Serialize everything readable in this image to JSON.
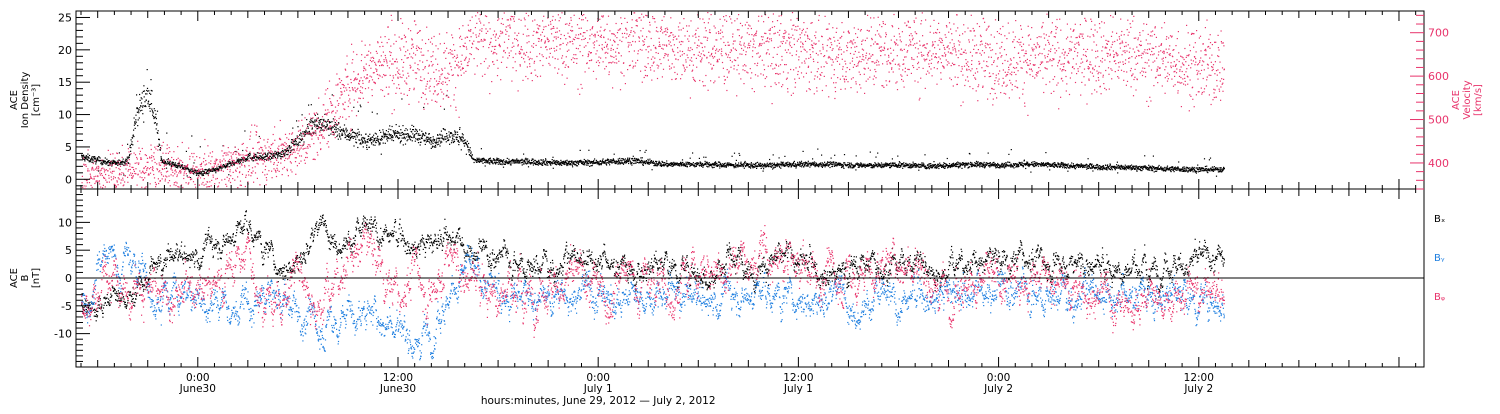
{
  "chart_data": [
    {
      "type": "scatter",
      "panel": "ion-density-velocity",
      "left_axis": {
        "label_lines": [
          "ACE",
          "Ion Density",
          "[cm⁻³]"
        ],
        "ticks": [
          0,
          5,
          10,
          15,
          20,
          25
        ],
        "ylim": [
          -1.5,
          26
        ],
        "color": "#000000"
      },
      "right_axis": {
        "label_lines": [
          "ACE",
          "Velocity",
          "[km/s]"
        ],
        "ticks": [
          400,
          500,
          600,
          700
        ],
        "ylim": [
          340,
          750
        ],
        "color": "#e8336b"
      },
      "series": [
        {
          "axis": "left",
          "color": "#000000",
          "anchors": [
            [
              -7,
              3.5
            ],
            [
              -5,
              2.5
            ],
            [
              -4.2,
              3
            ],
            [
              -3.6,
              11
            ],
            [
              -3,
              13
            ],
            [
              -2.6,
              10
            ],
            [
              -2.2,
              3
            ],
            [
              -1,
              2
            ],
            [
              0,
              1
            ],
            [
              1,
              1.5
            ],
            [
              2,
              2.5
            ],
            [
              3,
              3.5
            ],
            [
              4,
              3.5
            ],
            [
              5,
              4
            ],
            [
              6,
              6
            ],
            [
              7,
              9
            ],
            [
              8,
              8
            ],
            [
              9,
              7
            ],
            [
              10,
              6
            ],
            [
              11,
              6.5
            ],
            [
              12,
              7
            ],
            [
              13,
              7
            ],
            [
              14,
              6
            ],
            [
              15,
              7
            ],
            [
              16,
              6
            ],
            [
              16.5,
              3
            ],
            [
              18,
              2.8
            ],
            [
              20,
              2.8
            ],
            [
              22,
              2.6
            ],
            [
              24,
              2.7
            ],
            [
              26,
              3
            ],
            [
              28,
              2.4
            ],
            [
              30,
              2.4
            ],
            [
              32,
              2.3
            ],
            [
              34,
              2.2
            ],
            [
              36,
              2.4
            ],
            [
              38,
              2.4
            ],
            [
              40,
              2.2
            ],
            [
              42,
              2.3
            ],
            [
              44,
              2.1
            ],
            [
              46,
              2.4
            ],
            [
              48,
              2.3
            ],
            [
              50,
              2.4
            ],
            [
              52,
              2.2
            ],
            [
              54,
              2.0
            ],
            [
              56,
              1.9
            ],
            [
              58,
              1.7
            ],
            [
              60,
              1.6
            ],
            [
              61,
              1.6
            ]
          ],
          "noise": 0.35,
          "spike_rate": 0.04,
          "spike_amp": 6
        },
        {
          "axis": "right",
          "color": "#e8336b",
          "anchors": [
            [
              -7,
              365
            ],
            [
              -5,
              375
            ],
            [
              -3.5,
              388
            ],
            [
              -2.5,
              395
            ],
            [
              -1.5,
              380
            ],
            [
              0,
              375
            ],
            [
              1,
              385
            ],
            [
              2,
              395
            ],
            [
              3,
              408
            ],
            [
              4,
              415
            ],
            [
              5,
              425
            ],
            [
              6,
              440
            ],
            [
              7,
              470
            ],
            [
              8,
              520
            ],
            [
              9,
              575
            ],
            [
              10,
              615
            ],
            [
              11,
              630
            ],
            [
              12,
              630
            ],
            [
              13,
              640
            ],
            [
              14,
              620
            ],
            [
              15,
              615
            ],
            [
              15.8,
              640
            ],
            [
              16.5,
              690
            ],
            [
              18,
              685
            ],
            [
              20,
              690
            ],
            [
              22,
              680
            ],
            [
              24,
              678
            ],
            [
              26,
              690
            ],
            [
              28,
              670
            ],
            [
              30,
              665
            ],
            [
              32,
              665
            ],
            [
              34,
              670
            ],
            [
              36,
              660
            ],
            [
              38,
              650
            ],
            [
              40,
              655
            ],
            [
              42,
              665
            ],
            [
              44,
              668
            ],
            [
              46,
              650
            ],
            [
              48,
              640
            ],
            [
              50,
              640
            ],
            [
              52,
              645
            ],
            [
              54,
              655
            ],
            [
              56,
              650
            ],
            [
              58,
              640
            ],
            [
              60,
              622
            ],
            [
              61,
              625
            ]
          ],
          "noise": 0.07,
          "spike_rate": 0.01,
          "spike_amp": 60
        }
      ]
    },
    {
      "type": "scatter",
      "panel": "magnetic-field",
      "left_axis": {
        "label_lines": [
          "ACE",
          "B",
          "[nT]"
        ],
        "ticks": [
          -10,
          -5,
          0,
          5,
          10
        ],
        "ylim": [
          -16,
          16
        ],
        "color": "#000000"
      },
      "zero_line": true,
      "series": [
        {
          "name": "Bₓ",
          "color": "#000000",
          "anchors": [
            [
              -7,
              -4.5
            ],
            [
              -5,
              -4
            ],
            [
              -4,
              -3
            ],
            [
              -3,
              0
            ],
            [
              -2,
              3
            ],
            [
              -1,
              4
            ],
            [
              0,
              4.5
            ],
            [
              1,
              6
            ],
            [
              2,
              8
            ],
            [
              3,
              10
            ],
            [
              4,
              6
            ],
            [
              5,
              2
            ],
            [
              6,
              4
            ],
            [
              7,
              8
            ],
            [
              8,
              9
            ],
            [
              9,
              7
            ],
            [
              10,
              8
            ],
            [
              11,
              8
            ],
            [
              12,
              7
            ],
            [
              13,
              7
            ],
            [
              14,
              6
            ],
            [
              15,
              8
            ],
            [
              16,
              5
            ],
            [
              18,
              4
            ],
            [
              20,
              3
            ],
            [
              22,
              3
            ],
            [
              24,
              4
            ],
            [
              26,
              2
            ],
            [
              28,
              3
            ],
            [
              30,
              2
            ],
            [
              32,
              2
            ],
            [
              34,
              3
            ],
            [
              36,
              3
            ],
            [
              38,
              2
            ],
            [
              40,
              3
            ],
            [
              42,
              3
            ],
            [
              44,
              2
            ],
            [
              46,
              3
            ],
            [
              48,
              3
            ],
            [
              50,
              4
            ],
            [
              52,
              3
            ],
            [
              54,
              2
            ],
            [
              56,
              2
            ],
            [
              58,
              3
            ],
            [
              60,
              3
            ],
            [
              61,
              3
            ]
          ],
          "noise": 1.4
        },
        {
          "name": "Bᵧ",
          "color": "#1f7fe0",
          "anchors": [
            [
              -7,
              -5
            ],
            [
              -6,
              2
            ],
            [
              -5,
              3.5
            ],
            [
              -4,
              3
            ],
            [
              -3,
              0
            ],
            [
              -2,
              -3
            ],
            [
              -1,
              -2
            ],
            [
              0,
              -3
            ],
            [
              1,
              -5
            ],
            [
              2,
              -6
            ],
            [
              3,
              -6
            ],
            [
              4,
              -4
            ],
            [
              5,
              -5
            ],
            [
              6,
              -6
            ],
            [
              7,
              -9
            ],
            [
              8,
              -8
            ],
            [
              9,
              -6
            ],
            [
              10,
              -7
            ],
            [
              11,
              -8
            ],
            [
              12,
              -9
            ],
            [
              13,
              -10
            ],
            [
              14,
              -7
            ],
            [
              15,
              -3
            ],
            [
              16,
              2
            ],
            [
              18,
              -3
            ],
            [
              20,
              -5
            ],
            [
              22,
              -3
            ],
            [
              24,
              -2
            ],
            [
              26,
              -4
            ],
            [
              28,
              -3
            ],
            [
              30,
              -4
            ],
            [
              32,
              -3
            ],
            [
              34,
              -2
            ],
            [
              36,
              -3
            ],
            [
              38,
              -3
            ],
            [
              40,
              -4
            ],
            [
              42,
              -5
            ],
            [
              44,
              -2
            ],
            [
              46,
              -3
            ],
            [
              48,
              -2
            ],
            [
              50,
              -2
            ],
            [
              52,
              -2
            ],
            [
              54,
              -3
            ],
            [
              56,
              -2
            ],
            [
              58,
              -2
            ],
            [
              60,
              -3
            ],
            [
              61,
              -3
            ]
          ],
          "noise": 1.8
        },
        {
          "name": "Bᵩ",
          "color": "#e8336b",
          "anchors": [
            [
              -7,
              -3
            ],
            [
              -6,
              -3.5
            ],
            [
              -5,
              -2
            ],
            [
              -4,
              1
            ],
            [
              -3,
              -2
            ],
            [
              -2,
              -6
            ],
            [
              -1,
              -3
            ],
            [
              0,
              2
            ],
            [
              1,
              0
            ],
            [
              2,
              3
            ],
            [
              3,
              5
            ],
            [
              4,
              -3
            ],
            [
              5,
              -5
            ],
            [
              6,
              2
            ],
            [
              7,
              -3
            ],
            [
              8,
              -2
            ],
            [
              9,
              4
            ],
            [
              10,
              6
            ],
            [
              11,
              2
            ],
            [
              12,
              -4
            ],
            [
              13,
              3
            ],
            [
              14,
              -3
            ],
            [
              15,
              5
            ],
            [
              16,
              0
            ],
            [
              18,
              -2
            ],
            [
              20,
              -1
            ],
            [
              22,
              0
            ],
            [
              24,
              -2
            ],
            [
              26,
              0
            ],
            [
              28,
              -1
            ],
            [
              30,
              2
            ],
            [
              32,
              2
            ],
            [
              34,
              3
            ],
            [
              36,
              1
            ],
            [
              38,
              0
            ],
            [
              40,
              1
            ],
            [
              42,
              2
            ],
            [
              44,
              1
            ],
            [
              46,
              0
            ],
            [
              48,
              -1
            ],
            [
              50,
              -1
            ],
            [
              52,
              -2
            ],
            [
              54,
              -3
            ],
            [
              56,
              -4
            ],
            [
              58,
              -4
            ],
            [
              60,
              -3
            ],
            [
              61,
              -3
            ]
          ],
          "noise": 2.2
        }
      ]
    }
  ],
  "time_axis": {
    "xlim": [
      -7.3,
      73.5
    ],
    "data_end": 61.5,
    "major_ticks": [
      {
        "hour": 0,
        "lines": [
          "0:00",
          "June30"
        ]
      },
      {
        "hour": 12,
        "lines": [
          "12:00",
          "June30"
        ]
      },
      {
        "hour": 24,
        "lines": [
          "0:00",
          "July 1"
        ]
      },
      {
        "hour": 36,
        "lines": [
          "12:00",
          "July 1"
        ]
      },
      {
        "hour": 48,
        "lines": [
          "0:00",
          "July 2"
        ]
      },
      {
        "hour": 60,
        "lines": [
          "12:00",
          "July 2"
        ]
      }
    ],
    "xlabel": "hours:minutes, June 29, 2012 — July  2, 2012"
  }
}
